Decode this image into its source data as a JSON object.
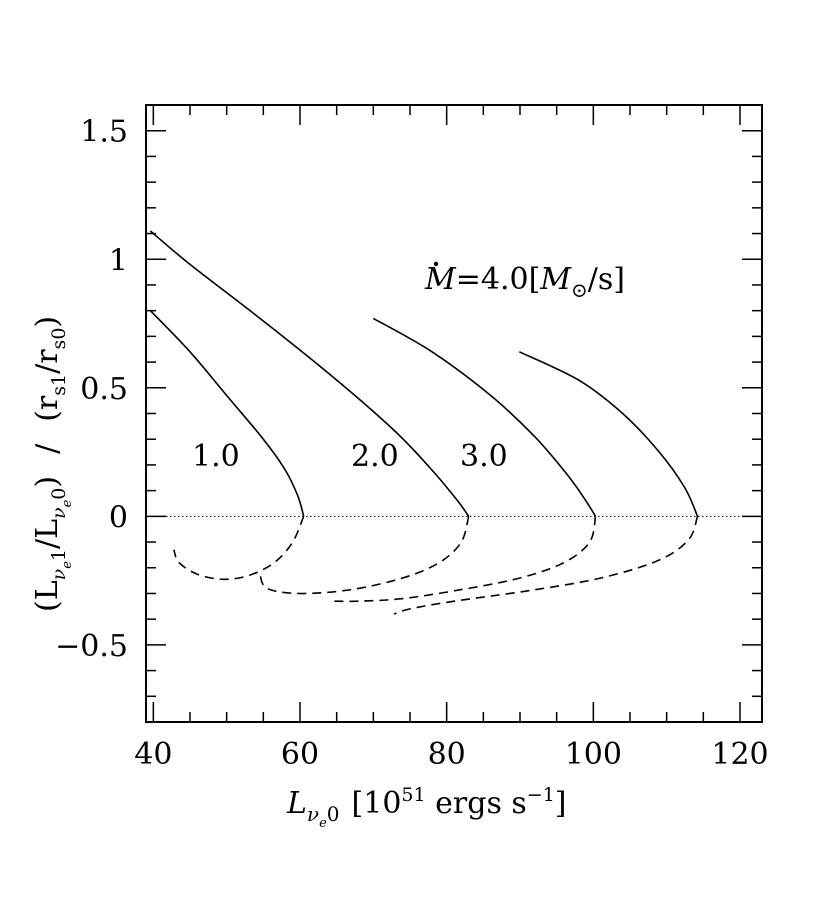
{
  "chart_data": {
    "type": "line",
    "xlabel": {
      "main": "L",
      "sub_nu": "ν",
      "sub_e": "e",
      "sub_0": "0",
      "units_open": "[10",
      "units_exp": "51",
      "units_mid": " ergs s",
      "units_exp2": "−1",
      "units_close": "]"
    },
    "ylabel": {
      "num_open": "(L",
      "num_sub1": "ν",
      "num_sub1e": "e",
      "num_sub1n": "1",
      "num_slash": "/L",
      "num_sub2": "ν",
      "num_sub2e": "e",
      "num_sub2n": "0",
      "num_close": ")",
      "divider": "/",
      "den_open": "(r",
      "den_sub1": "s1",
      "den_slash": "/r",
      "den_sub2": "s0",
      "den_close": ")"
    },
    "xlim": [
      39,
      123
    ],
    "ylim": [
      -0.8,
      1.6
    ],
    "x_ticks": [
      40,
      60,
      80,
      100,
      120
    ],
    "x_tick_labels": [
      "40",
      "60",
      "80",
      "100",
      "120"
    ],
    "y_ticks": [
      -0.5,
      0,
      0.5,
      1,
      1.5
    ],
    "y_tick_labels": [
      "−0.5",
      "0",
      "0.5",
      "1",
      "1.5"
    ],
    "x_minor_step": 5,
    "y_minor_step": 0.1,
    "reference_line_y": 0,
    "annotation": {
      "mdot": "M",
      "eq": "=4.0[",
      "msun": "M",
      "sun_symbol": "⊙",
      "tail": "/s]"
    },
    "curve_labels": [
      "1.0",
      "2.0",
      "3.0"
    ],
    "series": [
      {
        "name": "1.0",
        "stable": [
          [
            39.6,
            0.8
          ],
          [
            45,
            0.64
          ],
          [
            50,
            0.47
          ],
          [
            55,
            0.3
          ],
          [
            58,
            0.18
          ],
          [
            59.7,
            0.08
          ],
          [
            60.5,
            0.0
          ]
        ],
        "unstable": [
          [
            60.5,
            0.0
          ],
          [
            59,
            -0.1
          ],
          [
            56.5,
            -0.18
          ],
          [
            53,
            -0.23
          ],
          [
            49.5,
            -0.245
          ],
          [
            46,
            -0.225
          ],
          [
            43.5,
            -0.18
          ],
          [
            42.8,
            -0.13
          ]
        ]
      },
      {
        "name": "2.0",
        "stable": [
          [
            39.6,
            1.11
          ],
          [
            45,
            0.98
          ],
          [
            55,
            0.76
          ],
          [
            65,
            0.53
          ],
          [
            73,
            0.33
          ],
          [
            78,
            0.18
          ],
          [
            81.5,
            0.06
          ],
          [
            83.0,
            0.0
          ]
        ],
        "unstable": [
          [
            83.0,
            0.0
          ],
          [
            82,
            -0.1
          ],
          [
            79,
            -0.18
          ],
          [
            74,
            -0.24
          ],
          [
            67,
            -0.285
          ],
          [
            60,
            -0.3
          ],
          [
            55.5,
            -0.28
          ],
          [
            54.5,
            -0.22
          ]
        ]
      },
      {
        "name": "3.0",
        "stable": [
          [
            70.0,
            0.77
          ],
          [
            78,
            0.64
          ],
          [
            86,
            0.47
          ],
          [
            92,
            0.31
          ],
          [
            96.5,
            0.16
          ],
          [
            99,
            0.06
          ],
          [
            100.3,
            0.0
          ]
        ],
        "unstable": [
          [
            100.3,
            0.0
          ],
          [
            99.5,
            -0.1
          ],
          [
            96,
            -0.18
          ],
          [
            90,
            -0.24
          ],
          [
            82,
            -0.285
          ],
          [
            74,
            -0.32
          ],
          [
            68,
            -0.33
          ],
          [
            64.5,
            -0.33
          ]
        ]
      },
      {
        "name": "4.0",
        "stable": [
          [
            89.9,
            0.64
          ],
          [
            98,
            0.53
          ],
          [
            104,
            0.4
          ],
          [
            109,
            0.25
          ],
          [
            112.5,
            0.11
          ],
          [
            114.2,
            0.0
          ]
        ],
        "unstable": [
          [
            114.2,
            0.0
          ],
          [
            113,
            -0.09
          ],
          [
            109,
            -0.17
          ],
          [
            101,
            -0.24
          ],
          [
            91,
            -0.29
          ],
          [
            81,
            -0.33
          ],
          [
            75,
            -0.36
          ],
          [
            72.8,
            -0.38
          ]
        ]
      }
    ]
  }
}
